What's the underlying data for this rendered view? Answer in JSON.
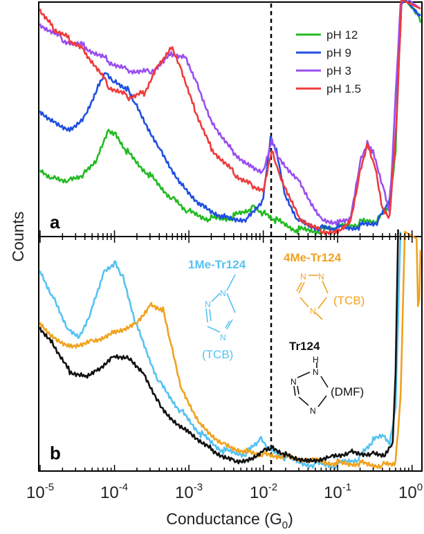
{
  "chart_data": [
    {
      "panel": "a",
      "type": "line",
      "xscale": "log",
      "xlim": [
        1e-05,
        1.3
      ],
      "xlabel": "Conductance (G0)",
      "ylabel": "Counts",
      "legend": {
        "position": "top-right"
      },
      "marker_line": {
        "x": 0.0135,
        "style": "dashed"
      },
      "series": [
        {
          "name": "pH 12",
          "color": "#22bb22",
          "points": [
            [
              1e-05,
              0.28
            ],
            [
              1.5e-05,
              0.25
            ],
            [
              2.5e-05,
              0.24
            ],
            [
              4e-05,
              0.27
            ],
            [
              6e-05,
              0.34
            ],
            [
              8e-05,
              0.45
            ],
            [
              0.0001,
              0.44
            ],
            [
              0.00015,
              0.36
            ],
            [
              0.0003,
              0.26
            ],
            [
              0.0006,
              0.16
            ],
            [
              0.001,
              0.1
            ],
            [
              0.002,
              0.07
            ],
            [
              0.004,
              0.08
            ],
            [
              0.007,
              0.12
            ],
            [
              0.01,
              0.09
            ],
            [
              0.015,
              0.06
            ],
            [
              0.03,
              0.02
            ],
            [
              0.06,
              0.02
            ],
            [
              0.1,
              0.03
            ],
            [
              0.2,
              0.05
            ],
            [
              0.35,
              0.06
            ],
            [
              0.5,
              0.12
            ],
            [
              0.6,
              0.35
            ],
            [
              0.7,
              1.0
            ],
            [
              0.8,
              1.02
            ],
            [
              1.2,
              0.95
            ],
            [
              1.3,
              0.92
            ]
          ]
        },
        {
          "name": "pH 9",
          "color": "#1f4fe0",
          "points": [
            [
              1e-05,
              0.54
            ],
            [
              1.5e-05,
              0.5
            ],
            [
              2.5e-05,
              0.46
            ],
            [
              4e-05,
              0.52
            ],
            [
              6e-05,
              0.65
            ],
            [
              7.5e-05,
              0.71
            ],
            [
              0.0001,
              0.67
            ],
            [
              0.00015,
              0.64
            ],
            [
              0.0002,
              0.56
            ],
            [
              0.0004,
              0.38
            ],
            [
              0.0008,
              0.22
            ],
            [
              0.0015,
              0.13
            ],
            [
              0.003,
              0.08
            ],
            [
              0.006,
              0.07
            ],
            [
              0.01,
              0.16
            ],
            [
              0.0125,
              0.42
            ],
            [
              0.015,
              0.36
            ],
            [
              0.02,
              0.16
            ],
            [
              0.03,
              0.06
            ],
            [
              0.06,
              0.03
            ],
            [
              0.1,
              0.03
            ],
            [
              0.2,
              0.04
            ],
            [
              0.35,
              0.06
            ],
            [
              0.5,
              0.15
            ],
            [
              0.6,
              0.4
            ],
            [
              0.72,
              1.0
            ],
            [
              0.8,
              1.02
            ],
            [
              1.3,
              0.95
            ]
          ]
        },
        {
          "name": "pH 3",
          "color": "#9a4ef0",
          "points": [
            [
              1e-05,
              0.92
            ],
            [
              2e-05,
              0.85
            ],
            [
              4e-05,
              0.82
            ],
            [
              8e-05,
              0.76
            ],
            [
              0.00015,
              0.72
            ],
            [
              0.0003,
              0.71
            ],
            [
              0.0006,
              0.79
            ],
            [
              0.0009,
              0.78
            ],
            [
              0.0013,
              0.66
            ],
            [
              0.002,
              0.5
            ],
            [
              0.004,
              0.36
            ],
            [
              0.007,
              0.3
            ],
            [
              0.01,
              0.28
            ],
            [
              0.013,
              0.42
            ],
            [
              0.016,
              0.34
            ],
            [
              0.03,
              0.24
            ],
            [
              0.06,
              0.07
            ],
            [
              0.1,
              0.06
            ],
            [
              0.15,
              0.08
            ],
            [
              0.2,
              0.32
            ],
            [
              0.25,
              0.4
            ],
            [
              0.3,
              0.36
            ],
            [
              0.4,
              0.22
            ],
            [
              0.5,
              0.1
            ],
            [
              0.6,
              0.6
            ],
            [
              0.7,
              1.0
            ],
            [
              0.8,
              1.03
            ],
            [
              1.3,
              0.98
            ]
          ]
        },
        {
          "name": "pH 1.5",
          "color": "#ee3b3b",
          "points": [
            [
              1e-05,
              0.98
            ],
            [
              1.5e-05,
              0.9
            ],
            [
              2.5e-05,
              0.85
            ],
            [
              4e-05,
              0.8
            ],
            [
              8e-05,
              0.65
            ],
            [
              0.00015,
              0.6
            ],
            [
              0.00025,
              0.62
            ],
            [
              0.0004,
              0.75
            ],
            [
              0.0006,
              0.82
            ],
            [
              0.0008,
              0.72
            ],
            [
              0.0012,
              0.55
            ],
            [
              0.002,
              0.38
            ],
            [
              0.004,
              0.27
            ],
            [
              0.007,
              0.22
            ],
            [
              0.01,
              0.2
            ],
            [
              0.013,
              0.38
            ],
            [
              0.016,
              0.28
            ],
            [
              0.03,
              0.08
            ],
            [
              0.06,
              0.02
            ],
            [
              0.1,
              0.02
            ],
            [
              0.15,
              0.07
            ],
            [
              0.2,
              0.28
            ],
            [
              0.25,
              0.4
            ],
            [
              0.32,
              0.3
            ],
            [
              0.4,
              0.12
            ],
            [
              0.5,
              0.08
            ],
            [
              0.62,
              0.5
            ],
            [
              0.72,
              1.02
            ],
            [
              1.3,
              0.98
            ]
          ]
        }
      ]
    },
    {
      "panel": "b",
      "type": "line",
      "xscale": "log",
      "xlim": [
        1e-05,
        1.3
      ],
      "xlabel": "Conductance (G0)",
      "ylabel": "Counts",
      "marker_line": {
        "x": 0.0135,
        "style": "dashed"
      },
      "series": [
        {
          "name": "1Me-Tr124",
          "color": "#55c2f2",
          "points": [
            [
              1e-05,
              0.86
            ],
            [
              1.5e-05,
              0.75
            ],
            [
              2.5e-05,
              0.6
            ],
            [
              3.5e-05,
              0.58
            ],
            [
              5e-05,
              0.7
            ],
            [
              7e-05,
              0.85
            ],
            [
              0.0001,
              0.9
            ],
            [
              0.00013,
              0.83
            ],
            [
              0.0002,
              0.62
            ],
            [
              0.0004,
              0.38
            ],
            [
              0.0008,
              0.25
            ],
            [
              0.0015,
              0.15
            ],
            [
              0.003,
              0.08
            ],
            [
              0.006,
              0.07
            ],
            [
              0.009,
              0.13
            ],
            [
              0.012,
              0.08
            ],
            [
              0.02,
              0.05
            ],
            [
              0.05,
              0.02
            ],
            [
              0.1,
              0.02
            ],
            [
              0.2,
              0.05
            ],
            [
              0.3,
              0.12
            ],
            [
              0.4,
              0.14
            ],
            [
              0.5,
              0.1
            ],
            [
              0.6,
              0.25
            ],
            [
              0.7,
              1.03
            ]
          ]
        },
        {
          "name": "4Me-Tr124",
          "color": "#f0a21e",
          "points": [
            [
              1e-05,
              0.64
            ],
            [
              1.5e-05,
              0.58
            ],
            [
              2.5e-05,
              0.54
            ],
            [
              5e-05,
              0.56
            ],
            [
              0.0001,
              0.6
            ],
            [
              0.0002,
              0.64
            ],
            [
              0.0003,
              0.72
            ],
            [
              0.00045,
              0.7
            ],
            [
              0.0006,
              0.52
            ],
            [
              0.0008,
              0.35
            ],
            [
              0.0015,
              0.19
            ],
            [
              0.003,
              0.11
            ],
            [
              0.006,
              0.08
            ],
            [
              0.01,
              0.07
            ],
            [
              0.02,
              0.06
            ],
            [
              0.05,
              0.04
            ],
            [
              0.1,
              0.03
            ],
            [
              0.2,
              0.03
            ],
            [
              0.4,
              0.02
            ],
            [
              0.6,
              0.03
            ],
            [
              0.7,
              0.3
            ],
            [
              0.8,
              1.03
            ],
            [
              1.15,
              1.0
            ],
            [
              1.2,
              0.7
            ],
            [
              1.25,
              0.72
            ],
            [
              1.3,
              0.95
            ]
          ]
        },
        {
          "name": "Tr124",
          "color": "#111111",
          "points": [
            [
              1e-05,
              0.62
            ],
            [
              1.5e-05,
              0.55
            ],
            [
              2.5e-05,
              0.43
            ],
            [
              4e-05,
              0.41
            ],
            [
              6e-05,
              0.44
            ],
            [
              0.0001,
              0.5
            ],
            [
              0.00016,
              0.49
            ],
            [
              0.00025,
              0.42
            ],
            [
              0.0004,
              0.29
            ],
            [
              0.0006,
              0.22
            ],
            [
              0.001,
              0.17
            ],
            [
              0.002,
              0.09
            ],
            [
              0.004,
              0.04
            ],
            [
              0.007,
              0.05
            ],
            [
              0.01,
              0.09
            ],
            [
              0.013,
              0.1
            ],
            [
              0.02,
              0.07
            ],
            [
              0.04,
              0.04
            ],
            [
              0.08,
              0.06
            ],
            [
              0.15,
              0.08
            ],
            [
              0.3,
              0.07
            ],
            [
              0.45,
              0.07
            ],
            [
              0.55,
              0.12
            ],
            [
              0.6,
              0.42
            ],
            [
              0.65,
              1.04
            ]
          ]
        }
      ],
      "annotations": [
        {
          "name": "1Me-Tr124",
          "solvent": "(TCB)",
          "color": "#55c2f2"
        },
        {
          "name": "4Me-Tr124",
          "solvent": "(TCB)",
          "color": "#f0a21e"
        },
        {
          "name": "Tr124",
          "solvent": "(DMF)",
          "color": "#111111"
        }
      ]
    }
  ],
  "axis": {
    "xlabel_main": "Conductance (G",
    "xlabel_sub": "0",
    "xlabel_close": ")",
    "ylabel": "Counts",
    "ticks": [
      {
        "base": "10",
        "exp": "-5"
      },
      {
        "base": "10",
        "exp": "-4"
      },
      {
        "base": "10",
        "exp": "-3"
      },
      {
        "base": "10",
        "exp": "-2"
      },
      {
        "base": "10",
        "exp": "-1"
      },
      {
        "base": "10",
        "exp": "0"
      }
    ]
  },
  "panels": {
    "a_label": "a",
    "b_label": "b"
  },
  "molecules": {
    "me1": {
      "name": "1Me-Tr124",
      "solvent": "(TCB)",
      "color": "#55c2f2"
    },
    "me4": {
      "name": "4Me-Tr124",
      "solvent": "(TCB)",
      "color": "#f0a21e"
    },
    "tr": {
      "name": "Tr124",
      "solvent": "(DMF)",
      "color": "#111111"
    },
    "atom_N": "N",
    "atom_H": "H"
  }
}
